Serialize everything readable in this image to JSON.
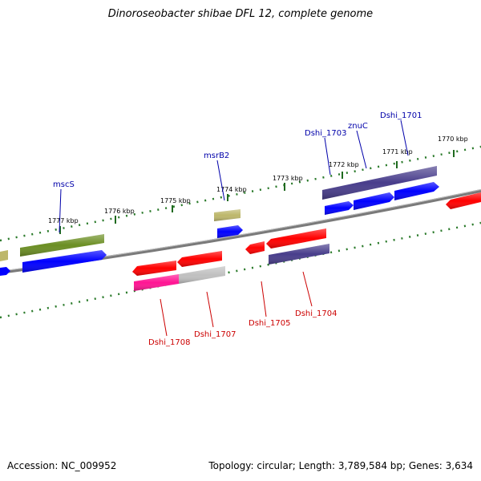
{
  "title": "Dinoroseobacter shibae DFL 12, complete genome",
  "footer": {
    "accession": "Accession: NC_009952",
    "summary": "Topology: circular; Length: 3,789,584 bp; Genes: 3,634"
  },
  "colors": {
    "backbone": "#888888",
    "scale_tick": "#2a7a2a",
    "label_top": "#0000aa",
    "label_bottom": "#cc0000",
    "gene_blue": "#0000ff",
    "gene_red": "#ff0000",
    "gene_olive": "#6b8e23",
    "gene_khaki": "#bdb76b",
    "gene_slate": "#483d8b",
    "gene_pink": "#ff1493",
    "gene_grey": "#c0c0c0"
  },
  "scale_labels": [
    "1777 kbp",
    "1776 kbp",
    "1775 kbp",
    "1774 kbp",
    "1773 kbp",
    "1772 kbp",
    "1771 kbp",
    "1770 kbp"
  ],
  "gene_labels_top": [
    "mscS",
    "msrB2",
    "Dshi_1703",
    "znuC",
    "Dshi_1701"
  ],
  "gene_labels_bottom": [
    "Dshi_1708",
    "Dshi_1707",
    "Dshi_1705",
    "Dshi_1704"
  ]
}
